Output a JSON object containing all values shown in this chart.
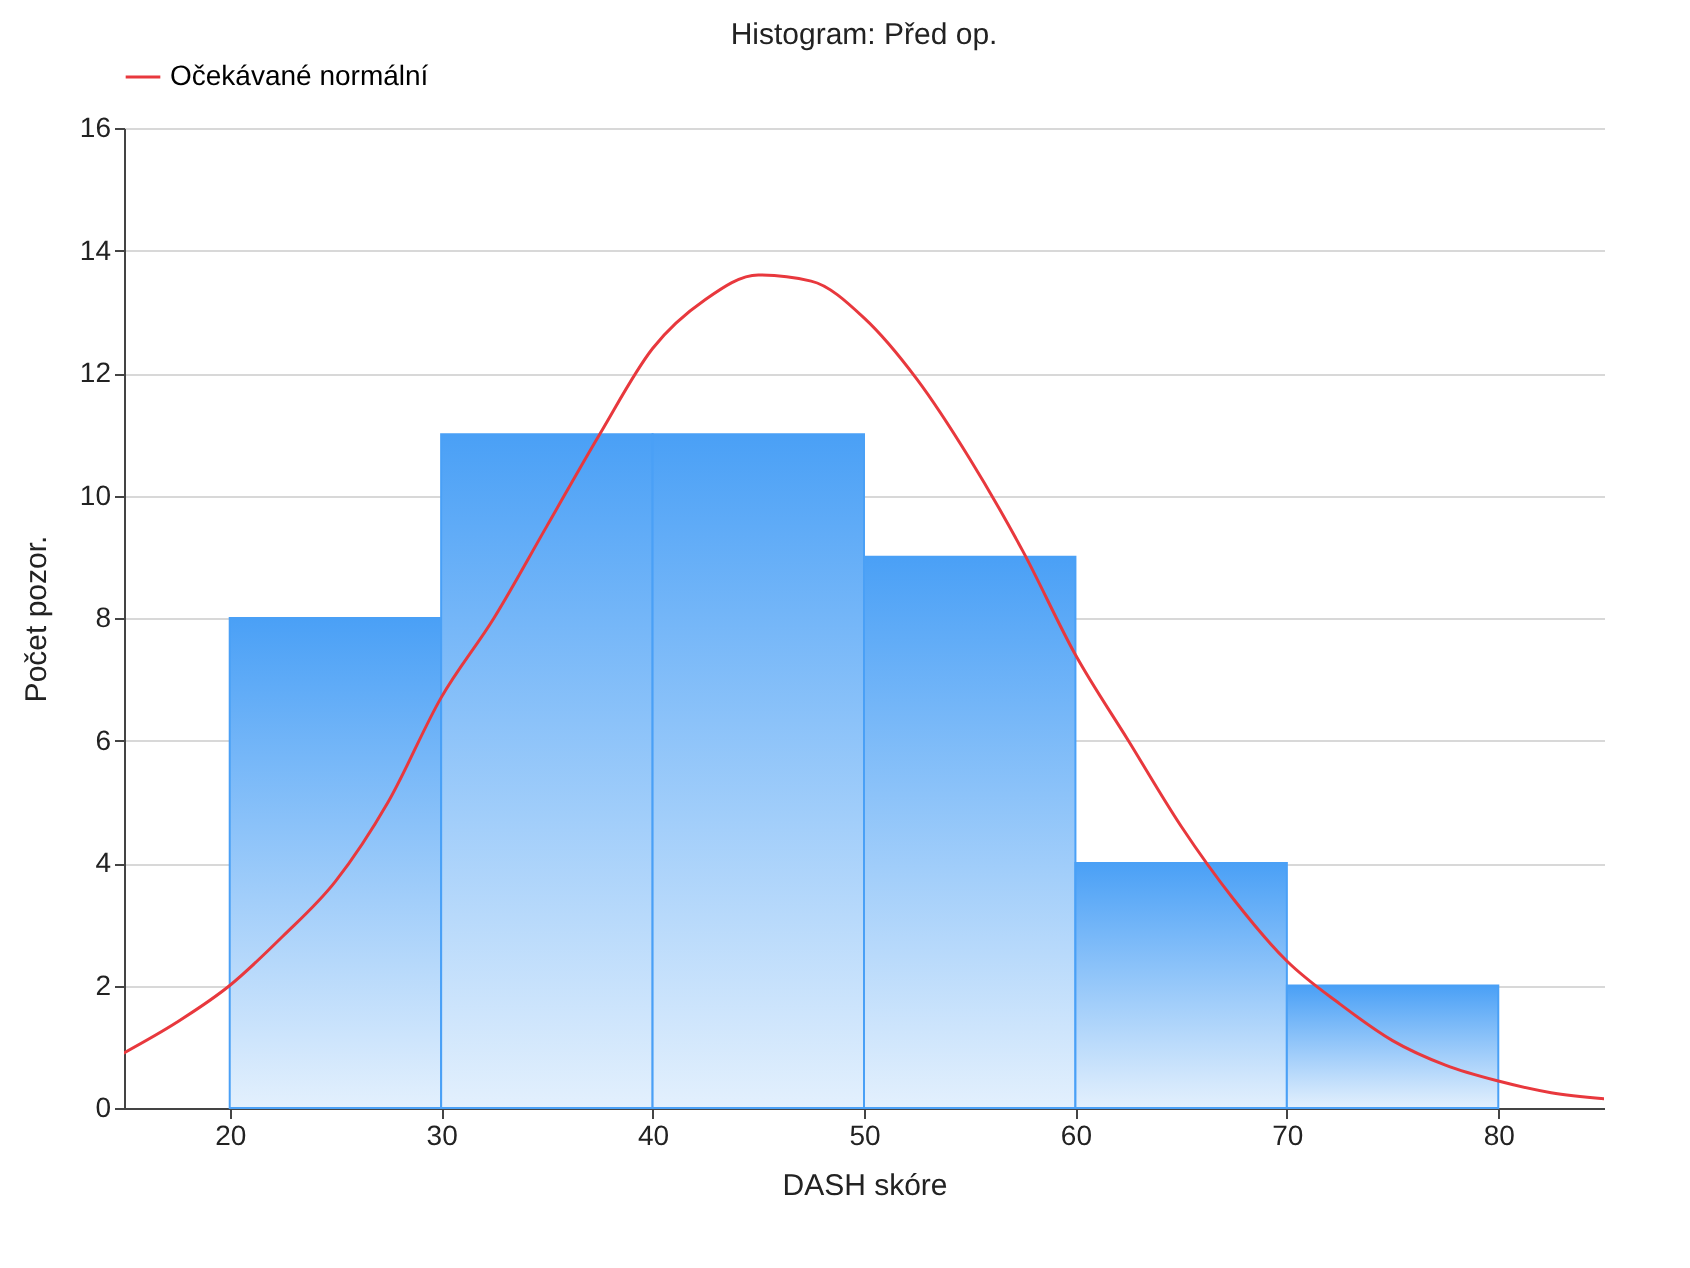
{
  "chart_data": {
    "type": "histogram",
    "title": "Histogram: Před op.",
    "xlabel": "DASH skóre",
    "ylabel": "Počet pozor.",
    "bins": [
      20,
      30,
      40,
      50,
      60,
      70,
      80
    ],
    "values": [
      8,
      11,
      11,
      9,
      4,
      2
    ],
    "color": "#4aa0f6",
    "series": [
      {
        "name": "Očekávané normální",
        "type": "line",
        "color": "#e8383d",
        "x": [
          15,
          17.5,
          20,
          22.5,
          25,
          27.5,
          30,
          32.5,
          35,
          37.5,
          40,
          42.5,
          45,
          47.5,
          50,
          52.5,
          55,
          57.5,
          60,
          62.5,
          65,
          67.5,
          70,
          72.5,
          75,
          77.5,
          80,
          82.5,
          85
        ],
        "values": [
          0.9,
          1.4,
          2.0,
          2.8,
          3.7,
          5.0,
          6.7,
          8.0,
          9.5,
          11.0,
          12.4,
          13.2,
          13.6,
          13.5,
          12.9,
          11.9,
          10.6,
          9.1,
          7.4,
          6.0,
          4.6,
          3.4,
          2.4,
          1.7,
          1.1,
          0.7,
          0.44,
          0.25,
          0.15
        ]
      }
    ],
    "xlim": [
      15,
      85
    ],
    "xticks": [
      20,
      30,
      40,
      50,
      60,
      70,
      80
    ],
    "ylim": [
      0,
      16
    ],
    "yticks": [
      0,
      2,
      4,
      6,
      8,
      10,
      12,
      14,
      16
    ],
    "grid": "y",
    "legend": "top",
    "marker": "none",
    "line_style": "solid"
  }
}
